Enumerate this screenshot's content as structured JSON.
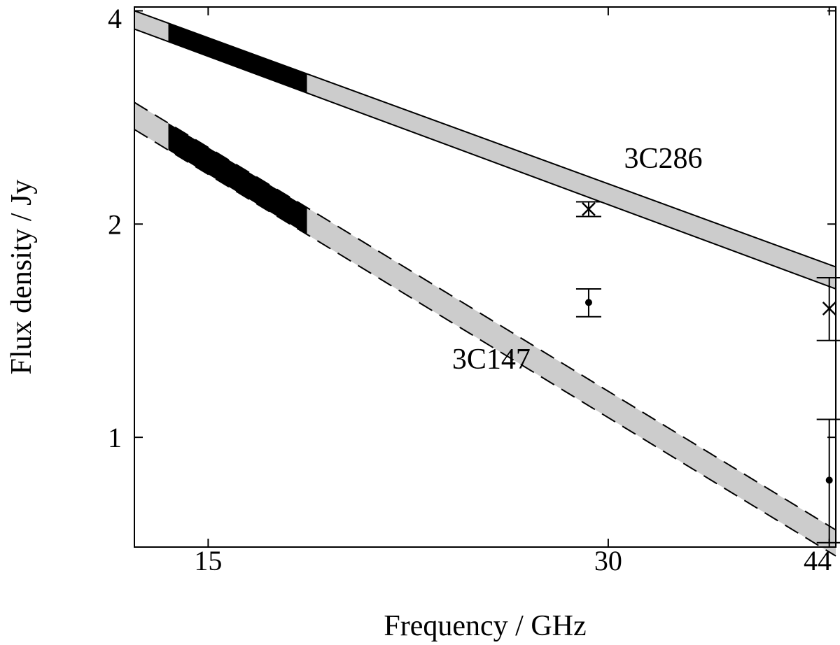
{
  "chart_data": {
    "type": "line",
    "xlabel": "Frequency / GHz",
    "ylabel": "Flux density / Jy",
    "x_scale": "log",
    "y_scale": "log",
    "xlim": [
      13.2,
      44.5
    ],
    "ylim": [
      0.7,
      4.05
    ],
    "x_ticks": [
      15,
      30,
      44
    ],
    "x_tick_labels": [
      "15",
      "30",
      "44"
    ],
    "y_ticks": [
      1,
      2,
      4
    ],
    "y_tick_labels": [
      "1",
      "2",
      "4"
    ],
    "grid": false,
    "legend": "none",
    "colors": {
      "band": "#cccccc",
      "band_highlight": "#000000",
      "line": "#000000"
    },
    "series": [
      {
        "source": "3C286",
        "line_style": "solid",
        "upper": {
          "x": [
            13.2,
            44.5
          ],
          "y": [
            4.0,
            1.74
          ]
        },
        "lower": {
          "x": [
            13.2,
            44.5
          ],
          "y": [
            3.77,
            1.62
          ]
        },
        "highlight_range": [
          14.0,
          17.8
        ],
        "points": [
          {
            "x": 29.0,
            "y": 2.1,
            "err_low": 2.05,
            "err_high": 2.15,
            "marker": "x"
          },
          {
            "x": 44.0,
            "y": 1.52,
            "err_low": 1.37,
            "err_high": 1.68,
            "marker": "x"
          }
        ]
      },
      {
        "source": "3C147",
        "line_style": "dashed",
        "upper": {
          "x": [
            13.2,
            44.5
          ],
          "y": [
            2.97,
            0.74
          ]
        },
        "lower": {
          "x": [
            13.2,
            44.5
          ],
          "y": [
            2.72,
            0.68
          ]
        },
        "highlight_range": [
          14.0,
          17.8
        ],
        "points": [
          {
            "x": 29.0,
            "y": 1.55,
            "err_low": 1.48,
            "err_high": 1.62,
            "marker": "dot"
          },
          {
            "x": 44.0,
            "y": 0.87,
            "err_low": 0.71,
            "err_high": 1.06,
            "marker": "dot"
          }
        ]
      }
    ],
    "annotations": [
      {
        "text": "3C286",
        "x": 33.0,
        "y": 2.4
      },
      {
        "text": "3C147",
        "x": 24.5,
        "y": 1.25
      }
    ]
  }
}
